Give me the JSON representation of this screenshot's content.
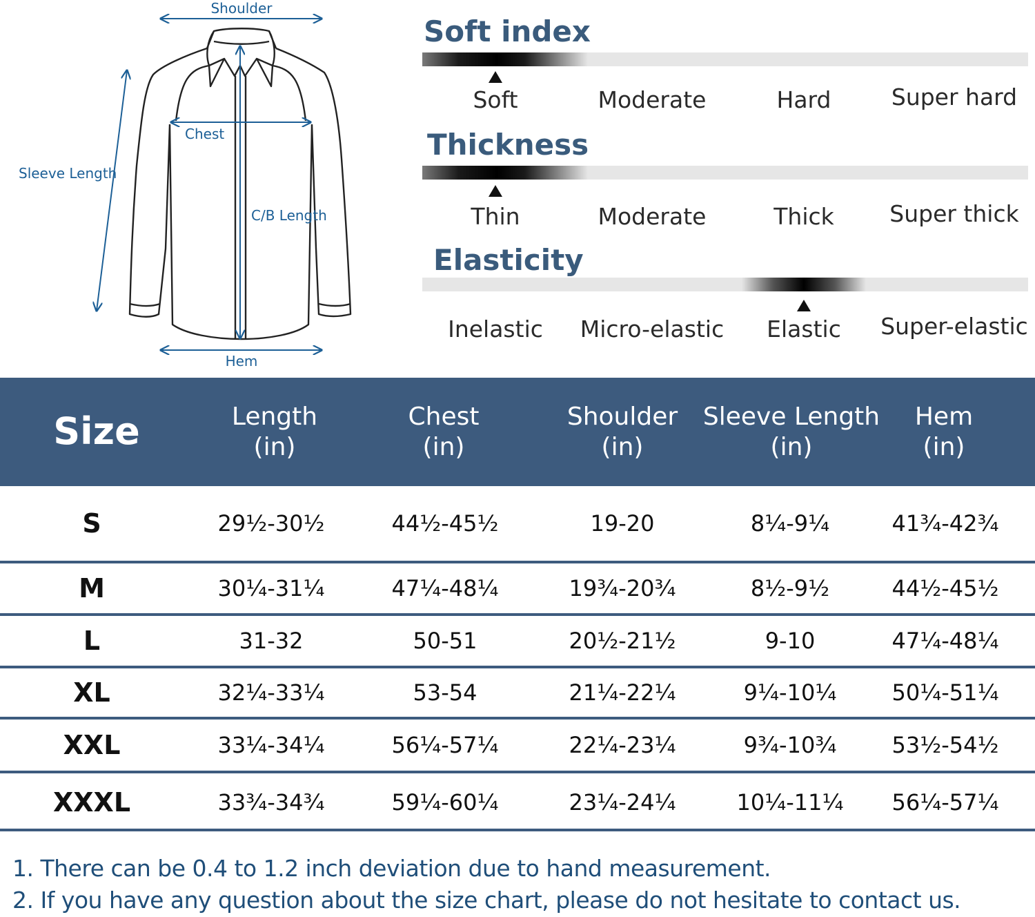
{
  "diagram": {
    "labels": {
      "shoulder": "Shoulder",
      "chest": "Chest",
      "sleeve_length": "Sleeve Length",
      "cb_length": "C/B Length",
      "hem": "Hem"
    },
    "line_color": "#1c5f96",
    "outline_color": "#222222"
  },
  "scales": [
    {
      "title": "Soft index",
      "options": [
        "Soft",
        "Moderate",
        "Hard",
        "Super hard"
      ],
      "selected_index": 0
    },
    {
      "title": "Thickness",
      "options": [
        "Thin",
        "Moderate",
        "Thick",
        "Super thick"
      ],
      "selected_index": 0
    },
    {
      "title": "Elasticity",
      "options": [
        "Inelastic",
        "Micro-elastic",
        "Elastic",
        "Super-elastic"
      ],
      "selected_index": 2
    }
  ],
  "table": {
    "header_color": "#3d5b7e",
    "columns": [
      {
        "name": "Size",
        "unit": ""
      },
      {
        "name": "Length",
        "unit": "(in)"
      },
      {
        "name": "Chest",
        "unit": "(in)"
      },
      {
        "name": "Shoulder",
        "unit": "(in)"
      },
      {
        "name": "Sleeve Length",
        "unit": "(in)"
      },
      {
        "name": "Hem",
        "unit": "(in)"
      }
    ],
    "rows": [
      [
        "S",
        "29½-30½",
        "44½-45½",
        "19-20",
        "8¼-9¼",
        "41¾-42¾"
      ],
      [
        "M",
        "30¼-31¼",
        "47¼-48¼",
        "19¾-20¾",
        "8½-9½",
        "44½-45½"
      ],
      [
        "L",
        "31-32",
        "50-51",
        "20½-21½",
        "9-10",
        "47¼-48¼"
      ],
      [
        "XL",
        "32¼-33¼",
        "53-54",
        "21¼-22¼",
        "9¼-10¼",
        "50¼-51¼"
      ],
      [
        "XXL",
        "33¼-34¼",
        "56¼-57¼",
        "22¼-23¼",
        "9¾-10¾",
        "53½-54½"
      ],
      [
        "XXXL",
        "33¾-34¾",
        "59¼-60¼",
        "23¼-24¼",
        "10¼-11¼",
        "56¼-57¼"
      ]
    ]
  },
  "notes": [
    "1. There can be 0.4 to 1.2 inch deviation due to hand measurement.",
    "2. If you have any question about the size chart, please do not hesitate to contact us."
  ]
}
